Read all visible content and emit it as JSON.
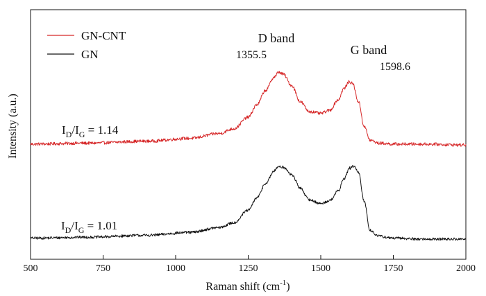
{
  "chart_data": {
    "type": "line",
    "xlabel": "Raman shift (cm",
    "xlabel_sup": "-1",
    "xlabel_close": ")",
    "ylabel": "Intensity (a.u.)",
    "xlim": [
      500,
      2000
    ],
    "ylim": [
      0,
      2.6
    ],
    "x_ticks": [
      500,
      750,
      1000,
      1250,
      1500,
      1750,
      2000
    ],
    "y_ticks_labeled": false,
    "legend_position": "top-left",
    "series": [
      {
        "name": "GN-CNT",
        "color": "#d62728",
        "baseline": 1.2,
        "noise": 0.016,
        "x": [
          500,
          700,
          900,
          1050,
          1150,
          1200,
          1250,
          1280,
          1310,
          1340,
          1355.5,
          1370,
          1400,
          1430,
          1460,
          1500,
          1530,
          1560,
          1580,
          1598.6,
          1610,
          1630,
          1650,
          1670,
          1700,
          1750,
          1850,
          2000
        ],
        "y": [
          1.2,
          1.21,
          1.23,
          1.26,
          1.31,
          1.36,
          1.48,
          1.61,
          1.76,
          1.9,
          1.95,
          1.93,
          1.81,
          1.64,
          1.54,
          1.52,
          1.55,
          1.66,
          1.78,
          1.85,
          1.83,
          1.64,
          1.38,
          1.24,
          1.21,
          1.2,
          1.2,
          1.19
        ]
      },
      {
        "name": "GN",
        "color": "#111111",
        "baseline": 0.22,
        "noise": 0.014,
        "x": [
          500,
          700,
          900,
          1050,
          1150,
          1200,
          1250,
          1280,
          1310,
          1340,
          1355.5,
          1370,
          1400,
          1430,
          1460,
          1500,
          1530,
          1560,
          1580,
          1600,
          1615,
          1630,
          1650,
          1670,
          1700,
          1750,
          1850,
          2000
        ],
        "y": [
          0.22,
          0.23,
          0.25,
          0.28,
          0.33,
          0.38,
          0.51,
          0.64,
          0.79,
          0.92,
          0.97,
          0.96,
          0.88,
          0.74,
          0.62,
          0.58,
          0.61,
          0.71,
          0.84,
          0.95,
          0.97,
          0.9,
          0.6,
          0.3,
          0.24,
          0.22,
          0.21,
          0.21
        ]
      }
    ],
    "annotations": {
      "d_band": {
        "label": "D band",
        "x": 1355.5,
        "value": "1355.5"
      },
      "g_band": {
        "label": "G band",
        "x": 1598.6,
        "value": "1598.6"
      },
      "ratio_gncnt": {
        "prefix": "I",
        "sub1": "D",
        "slash": "/I",
        "sub2": "G",
        "value": " = 1.14"
      },
      "ratio_gn": {
        "prefix": "I",
        "sub1": "D",
        "slash": "/I",
        "sub2": "G",
        "value": " = 1.01"
      }
    }
  }
}
